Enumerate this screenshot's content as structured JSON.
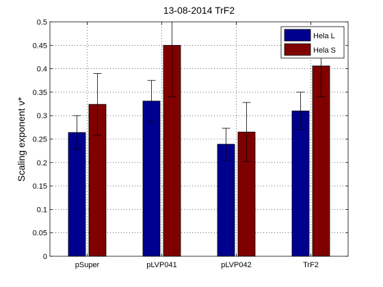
{
  "chart_data": {
    "type": "bar",
    "title": "13-08-2014 TrF2",
    "xlabel": "",
    "ylabel": "Scaling exponent ν*",
    "ylim": [
      0,
      0.5
    ],
    "yticks": [
      "0",
      "0.05",
      "0.1",
      "0.15",
      "0.2",
      "0.25",
      "0.3",
      "0.35",
      "0.4",
      "0.45",
      "0.5"
    ],
    "categories": [
      "pSuper",
      "pLVP041",
      "pLVP042",
      "TrF2"
    ],
    "grid": true,
    "legend_position": "top-right",
    "series": [
      {
        "name": "Hela L",
        "color": "#00008f",
        "values": [
          0.264,
          0.331,
          0.239,
          0.31
        ],
        "errors": [
          0.036,
          0.044,
          0.034,
          0.04
        ]
      },
      {
        "name": "Hela S",
        "color": "#800000",
        "values": [
          0.324,
          0.45,
          0.265,
          0.406
        ],
        "errors": [
          0.066,
          0.11,
          0.063,
          0.066
        ]
      }
    ]
  }
}
